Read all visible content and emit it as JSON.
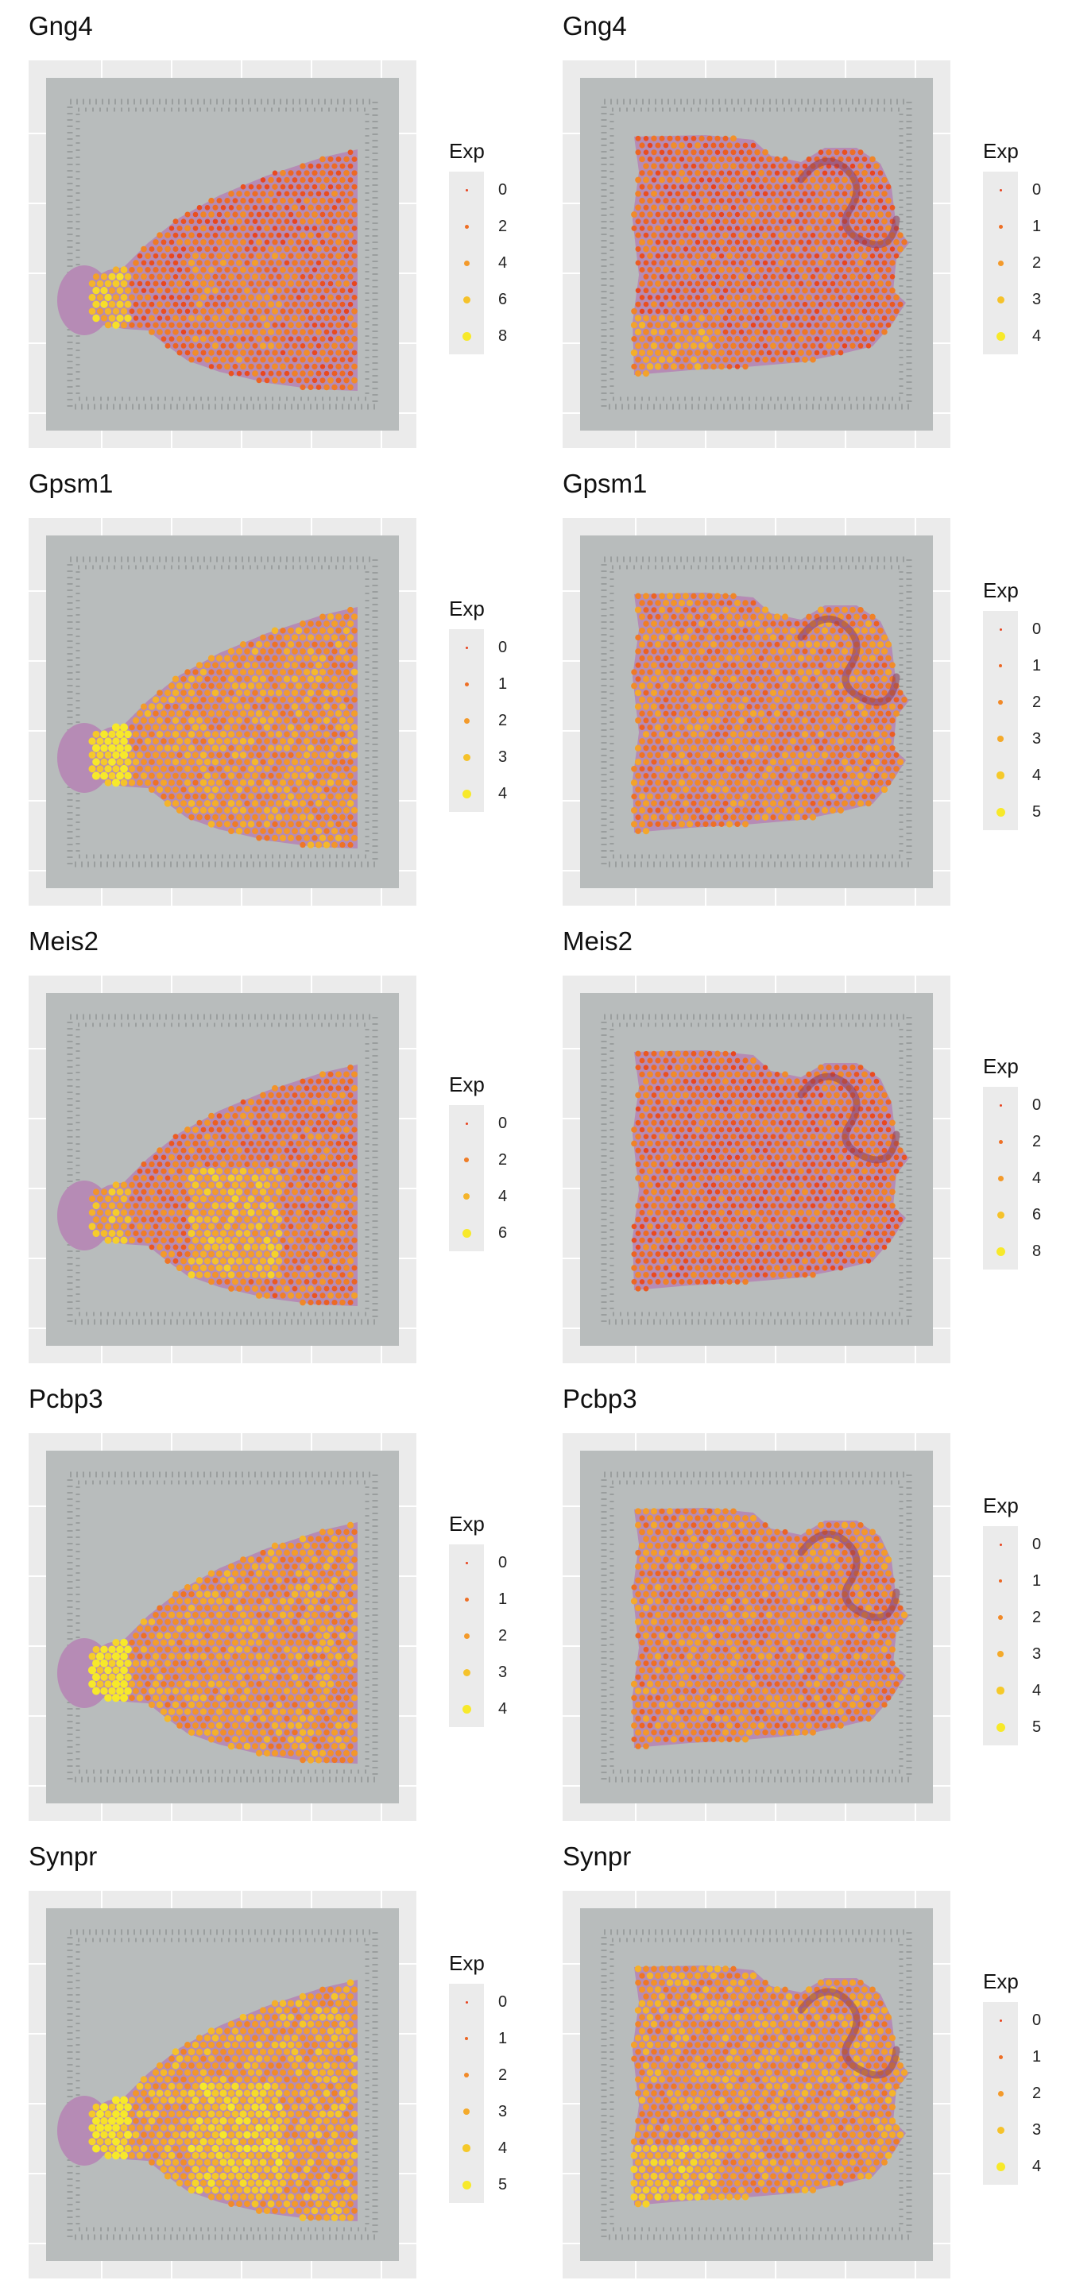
{
  "chart_data": [
    {
      "type": "scatter",
      "section": "coronal",
      "title": "Gng4",
      "legend": {
        "title": "Exp",
        "breaks": [
          0,
          2,
          4,
          6,
          8
        ]
      },
      "hotspots": {
        "olfactory_bulb": 6,
        "striatum": 3,
        "cortex": 2
      }
    },
    {
      "type": "scatter",
      "section": "sagittal",
      "title": "Gng4",
      "legend": {
        "title": "Exp",
        "breaks": [
          0,
          1,
          2,
          3,
          4
        ]
      },
      "hotspots": {
        "olfactory_bulb": 2,
        "striatum": 1,
        "cortex": 1
      }
    },
    {
      "type": "scatter",
      "section": "coronal",
      "title": "Gpsm1",
      "legend": {
        "title": "Exp",
        "breaks": [
          0,
          1,
          2,
          3,
          4
        ]
      },
      "hotspots": {
        "olfactory_bulb": 4,
        "striatum": 2,
        "cortex": 2
      }
    },
    {
      "type": "scatter",
      "section": "sagittal",
      "title": "Gpsm1",
      "legend": {
        "title": "Exp",
        "breaks": [
          0,
          1,
          2,
          3,
          4,
          5
        ]
      },
      "hotspots": {
        "olfactory_bulb": 2,
        "striatum": 2,
        "cortex": 2
      }
    },
    {
      "type": "scatter",
      "section": "coronal",
      "title": "Meis2",
      "legend": {
        "title": "Exp",
        "breaks": [
          0,
          2,
          4,
          6
        ]
      },
      "hotspots": {
        "olfactory_bulb": 4,
        "striatum": 4,
        "cortex": 2
      }
    },
    {
      "type": "scatter",
      "section": "sagittal",
      "title": "Meis2",
      "legend": {
        "title": "Exp",
        "breaks": [
          0,
          2,
          4,
          6,
          8
        ]
      },
      "hotspots": {
        "olfactory_bulb": 2,
        "striatum": 2,
        "cortex": 2
      }
    },
    {
      "type": "scatter",
      "section": "coronal",
      "title": "Pcbp3",
      "legend": {
        "title": "Exp",
        "breaks": [
          0,
          1,
          2,
          3,
          4
        ]
      },
      "hotspots": {
        "olfactory_bulb": 4,
        "striatum": 2,
        "cortex": 2
      }
    },
    {
      "type": "scatter",
      "section": "sagittal",
      "title": "Pcbp3",
      "legend": {
        "title": "Exp",
        "breaks": [
          0,
          1,
          2,
          3,
          4,
          5
        ]
      },
      "hotspots": {
        "olfactory_bulb": 2,
        "striatum": 2,
        "cortex": 2
      }
    },
    {
      "type": "scatter",
      "section": "coronal",
      "title": "Synpr",
      "legend": {
        "title": "Exp",
        "breaks": [
          0,
          1,
          2,
          3,
          4,
          5
        ]
      },
      "hotspots": {
        "olfactory_bulb": 5,
        "striatum": 4,
        "cortex": 3
      }
    },
    {
      "type": "scatter",
      "section": "sagittal",
      "title": "Synpr",
      "legend": {
        "title": "Exp",
        "breaks": [
          0,
          1,
          2,
          3,
          4
        ]
      },
      "hotspots": {
        "olfactory_bulb": 3,
        "striatum": 2,
        "cortex": 2
      }
    }
  ],
  "colors": {
    "low": "#e8431e",
    "mid": "#f39a2b",
    "high": "#f7e92a",
    "tissue": "#b68bb5",
    "tissue_dark": "#8e3a5a",
    "capture_area": "#b8bcbc",
    "panel_bg": "#ebebeb"
  }
}
